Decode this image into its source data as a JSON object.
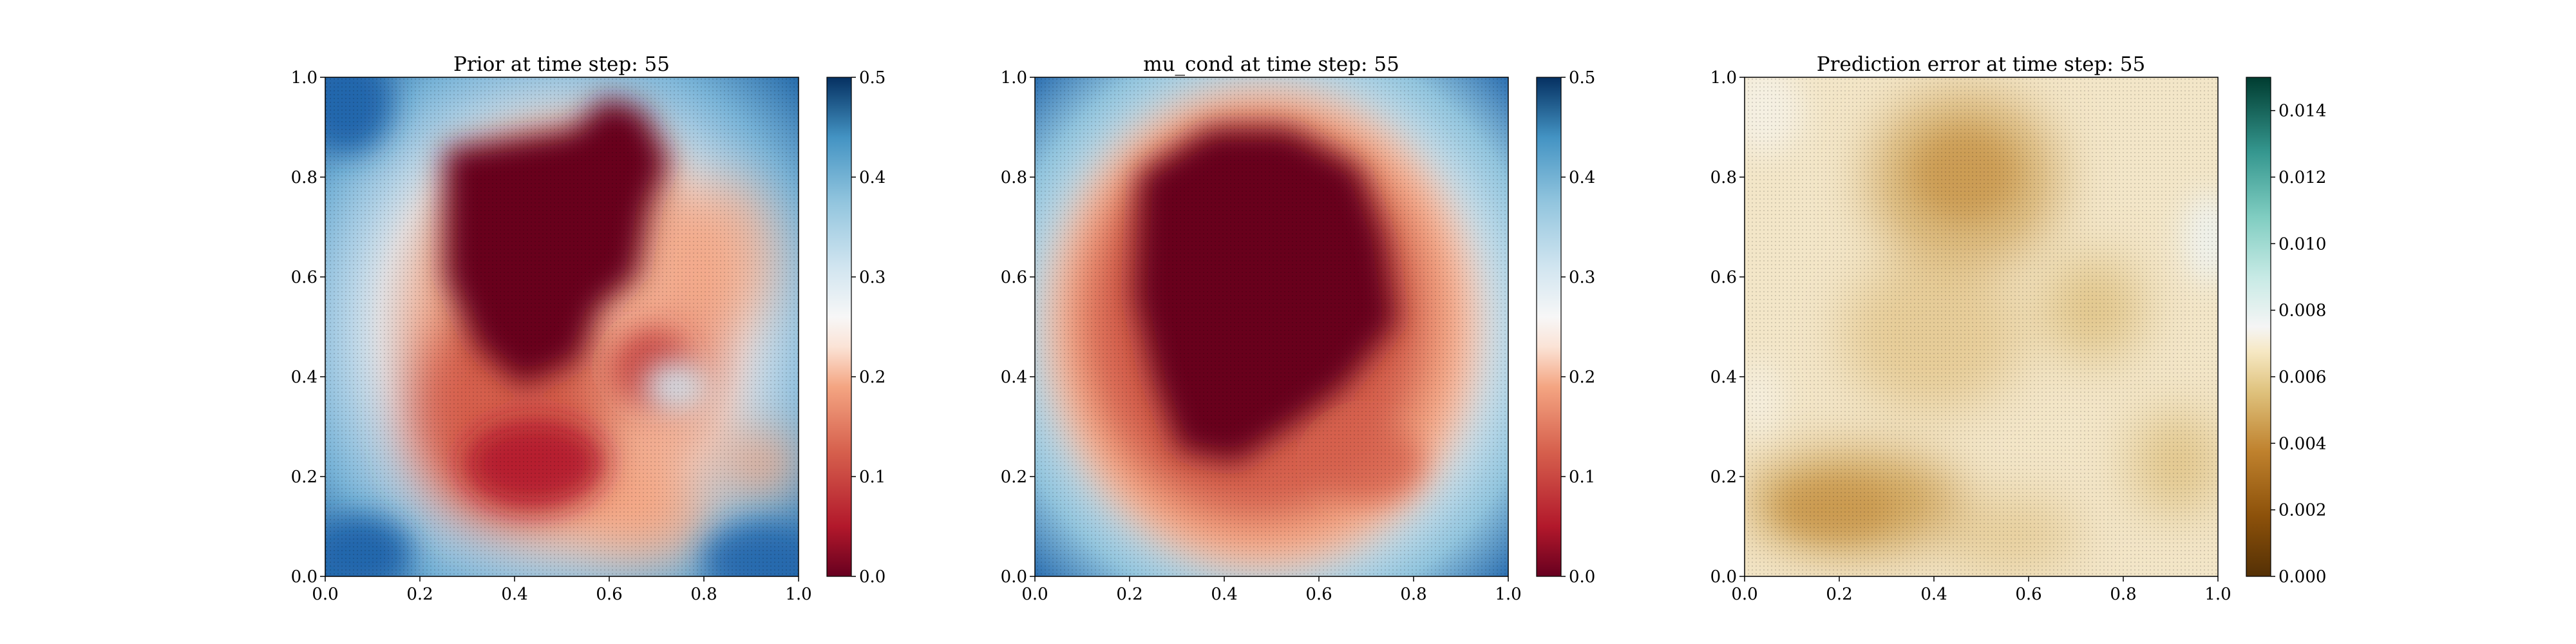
{
  "chart_data": [
    {
      "type": "heatmap",
      "title": "Prior at time step: 55",
      "xlabel": "",
      "ylabel": "",
      "xlim": [
        0,
        1
      ],
      "ylim": [
        0,
        1
      ],
      "x_ticks": [
        "0.0",
        "0.2",
        "0.4",
        "0.6",
        "0.8",
        "1.0"
      ],
      "y_ticks": [
        "0.0",
        "0.2",
        "0.4",
        "0.6",
        "0.8",
        "1.0"
      ],
      "colormap": "RdBu",
      "colorbar": {
        "range": [
          0,
          0.5
        ],
        "ticks": [
          "0.0",
          "0.1",
          "0.2",
          "0.3",
          "0.4",
          "0.5"
        ]
      },
      "grid": false,
      "field_description_points": [
        {
          "x": 0.05,
          "y": 0.95,
          "v": 0.48
        },
        {
          "x": 0.2,
          "y": 0.8,
          "v": 0.35
        },
        {
          "x": 0.4,
          "y": 0.7,
          "v": 0.02
        },
        {
          "x": 0.5,
          "y": 0.6,
          "v": 0.03
        },
        {
          "x": 0.35,
          "y": 0.5,
          "v": 0.05
        },
        {
          "x": 0.6,
          "y": 0.9,
          "v": 0.06
        },
        {
          "x": 0.5,
          "y": 0.3,
          "v": 0.12
        },
        {
          "x": 0.7,
          "y": 0.2,
          "v": 0.2
        },
        {
          "x": 0.8,
          "y": 0.4,
          "v": 0.33
        },
        {
          "x": 0.9,
          "y": 0.35,
          "v": 0.2
        },
        {
          "x": 0.1,
          "y": 0.2,
          "v": 0.4
        },
        {
          "x": 0.5,
          "y": 0.05,
          "v": 0.42
        },
        {
          "x": 0.95,
          "y": 0.05,
          "v": 0.48
        },
        {
          "x": 0.9,
          "y": 0.85,
          "v": 0.3
        }
      ]
    },
    {
      "type": "heatmap",
      "title": "mu_cond at time step: 55",
      "xlabel": "",
      "ylabel": "",
      "xlim": [
        0,
        1
      ],
      "ylim": [
        0,
        1
      ],
      "x_ticks": [
        "0.0",
        "0.2",
        "0.4",
        "0.6",
        "0.8",
        "1.0"
      ],
      "y_ticks": [
        "0.0",
        "0.2",
        "0.4",
        "0.6",
        "0.8",
        "1.0"
      ],
      "colormap": "RdBu",
      "colorbar": {
        "range": [
          0,
          0.5
        ],
        "ticks": [
          "0.0",
          "0.1",
          "0.2",
          "0.3",
          "0.4",
          "0.5"
        ]
      },
      "grid": false,
      "field_description_points": [
        {
          "x": 0.0,
          "y": 1.0,
          "v": 0.48
        },
        {
          "x": 1.0,
          "y": 0.0,
          "v": 0.45
        },
        {
          "x": 0.45,
          "y": 0.55,
          "v": 0.01
        },
        {
          "x": 0.35,
          "y": 0.3,
          "v": 0.05
        },
        {
          "x": 0.75,
          "y": 0.35,
          "v": 0.12
        },
        {
          "x": 0.85,
          "y": 0.7,
          "v": 0.18
        },
        {
          "x": 0.1,
          "y": 0.5,
          "v": 0.3
        },
        {
          "x": 0.5,
          "y": 0.05,
          "v": 0.35
        }
      ]
    },
    {
      "type": "heatmap",
      "title": "Prediction error at time step: 55",
      "xlabel": "",
      "ylabel": "",
      "xlim": [
        0,
        1
      ],
      "ylim": [
        0,
        1
      ],
      "x_ticks": [
        "0.0",
        "0.2",
        "0.4",
        "0.6",
        "0.8",
        "1.0"
      ],
      "y_ticks": [
        "0.0",
        "0.2",
        "0.4",
        "0.6",
        "0.8",
        "1.0"
      ],
      "colormap": "BrBG",
      "colorbar": {
        "range": [
          0,
          0.015
        ],
        "ticks": [
          "0.000",
          "0.002",
          "0.004",
          "0.006",
          "0.008",
          "0.010",
          "0.012",
          "0.014"
        ]
      },
      "grid": false,
      "field_description_points": [
        {
          "x": 0.45,
          "y": 0.8,
          "v": 0.0045
        },
        {
          "x": 0.2,
          "y": 0.12,
          "v": 0.0045
        },
        {
          "x": 0.8,
          "y": 0.55,
          "v": 0.0055
        },
        {
          "x": 0.1,
          "y": 0.55,
          "v": 0.006
        },
        {
          "x": 0.6,
          "y": 0.35,
          "v": 0.006
        },
        {
          "x": 0.95,
          "y": 0.5,
          "v": 0.0075
        },
        {
          "x": 0.05,
          "y": 0.95,
          "v": 0.007
        }
      ]
    }
  ]
}
